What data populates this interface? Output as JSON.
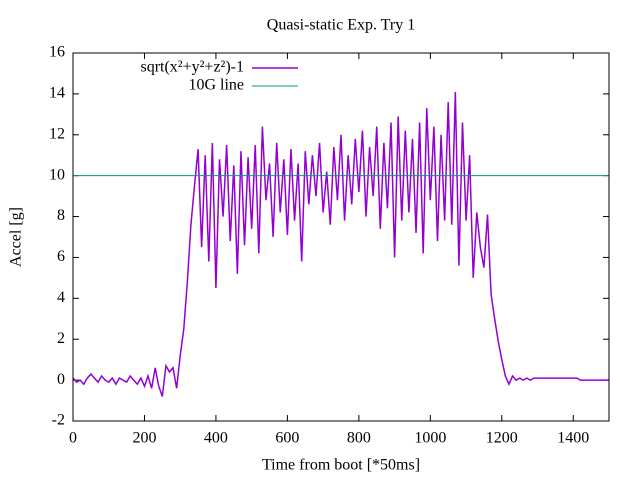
{
  "chart_data": {
    "type": "line",
    "title": "Quasi-static Exp. Try 1",
    "x_label": "Time from boot [*50ms]",
    "y_label": "Accel [g]",
    "xlim": [
      0,
      1500
    ],
    "xticks": [
      0,
      200,
      400,
      600,
      800,
      1000,
      1200,
      1400
    ],
    "ylim": [
      -2,
      16
    ],
    "yticks": [
      -2,
      0,
      2,
      4,
      6,
      8,
      10,
      12,
      14,
      16
    ],
    "legend": "top-left",
    "series": [
      {
        "name": "sqrt(x²+y²+z²)-1",
        "color": "#9400d3",
        "x": [
          0,
          10,
          20,
          30,
          40,
          50,
          60,
          70,
          80,
          90,
          100,
          110,
          120,
          130,
          140,
          150,
          160,
          170,
          180,
          190,
          200,
          210,
          220,
          230,
          240,
          250,
          260,
          270,
          280,
          290,
          300,
          310,
          320,
          330,
          340,
          350,
          360,
          370,
          380,
          390,
          400,
          410,
          420,
          430,
          440,
          450,
          460,
          470,
          480,
          490,
          500,
          510,
          520,
          530,
          540,
          550,
          560,
          570,
          580,
          590,
          600,
          610,
          620,
          630,
          640,
          650,
          660,
          670,
          680,
          690,
          700,
          710,
          720,
          730,
          740,
          750,
          760,
          770,
          780,
          790,
          800,
          810,
          820,
          830,
          840,
          850,
          860,
          870,
          880,
          890,
          900,
          910,
          920,
          930,
          940,
          950,
          960,
          970,
          980,
          990,
          1000,
          1010,
          1020,
          1030,
          1040,
          1050,
          1060,
          1070,
          1080,
          1090,
          1100,
          1110,
          1120,
          1130,
          1140,
          1150,
          1160,
          1170,
          1180,
          1190,
          1200,
          1210,
          1220,
          1230,
          1240,
          1250,
          1260,
          1270,
          1280,
          1290,
          1300,
          1310,
          1320,
          1330,
          1340,
          1350,
          1360,
          1370,
          1380,
          1390,
          1400,
          1410,
          1420,
          1430,
          1440,
          1450,
          1460,
          1470,
          1480,
          1490,
          1500
        ],
        "values": [
          0.1,
          -0.1,
          0.0,
          -0.2,
          0.1,
          0.3,
          0.1,
          -0.1,
          0.2,
          0.0,
          -0.1,
          0.1,
          -0.2,
          0.1,
          0.0,
          -0.1,
          0.2,
          0.0,
          -0.2,
          0.1,
          -0.3,
          0.2,
          -0.4,
          0.6,
          -0.3,
          -0.8,
          0.7,
          0.4,
          0.6,
          -0.4,
          1.2,
          2.5,
          4.8,
          7.6,
          9.5,
          11.3,
          6.5,
          11.0,
          5.8,
          11.6,
          4.5,
          10.8,
          8.0,
          11.5,
          6.8,
          10.5,
          5.2,
          11.2,
          6.6,
          10.9,
          7.4,
          11.5,
          6.2,
          12.4,
          8.8,
          10.6,
          7.0,
          11.6,
          8.2,
          10.8,
          7.1,
          11.3,
          7.8,
          10.6,
          5.8,
          11.2,
          8.6,
          11.0,
          9.0,
          11.6,
          8.2,
          10.2,
          7.6,
          11.4,
          8.8,
          12.0,
          7.8,
          11.0,
          8.6,
          11.8,
          9.2,
          12.2,
          8.0,
          11.4,
          9.0,
          12.4,
          7.4,
          11.6,
          8.4,
          12.6,
          6.0,
          12.9,
          7.8,
          12.2,
          8.2,
          11.8,
          7.2,
          12.6,
          6.2,
          13.3,
          8.8,
          12.4,
          6.8,
          12.0,
          7.8,
          13.6,
          7.6,
          14.1,
          5.6,
          12.6,
          7.8,
          11.0,
          5.0,
          8.2,
          6.5,
          5.5,
          8.1,
          4.2,
          3.0,
          1.9,
          1.0,
          0.2,
          -0.2,
          0.2,
          0.0,
          0.1,
          0.0,
          0.1,
          0.0,
          0.1,
          0.1,
          0.1,
          0.1,
          0.1,
          0.1,
          0.1,
          0.1,
          0.1,
          0.1,
          0.1,
          0.1,
          0.1,
          0.0,
          0.0,
          0.0,
          0.0,
          0.0,
          0.0,
          0.0,
          0.0,
          0.0
        ]
      },
      {
        "name": "10G line",
        "color": "#009e73",
        "x": [
          0,
          1500
        ],
        "values": [
          10,
          10
        ]
      }
    ]
  }
}
